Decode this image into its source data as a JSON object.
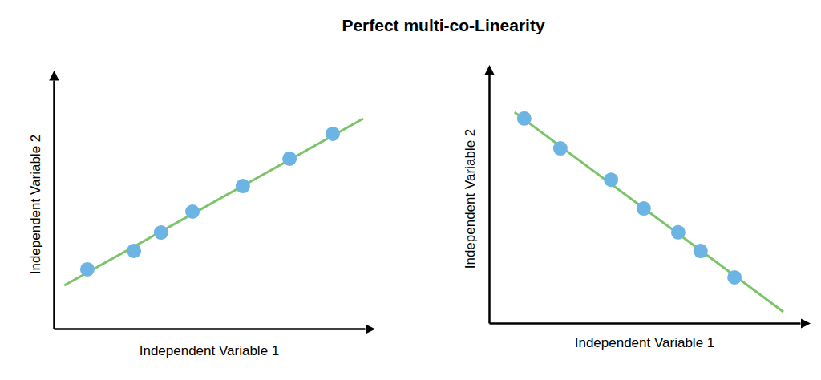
{
  "title": "Perfect multi-co-Linearity",
  "chart_data": [
    {
      "type": "scatter",
      "xlabel": "Independent Variable 1",
      "ylabel": "Independent Variable 2",
      "xlim": [
        0,
        10
      ],
      "ylim": [
        0,
        10
      ],
      "tick_labels": false,
      "grid": false,
      "series": [
        {
          "type": "scatter",
          "color": "#6cb4e4",
          "marker": "circle",
          "x": [
            1.08,
            2.58,
            3.45,
            4.46,
            6.08,
            7.58,
            8.97
          ],
          "values": [
            2.39,
            3.13,
            3.87,
            4.71,
            5.74,
            6.84,
            7.84
          ]
        },
        {
          "type": "line",
          "color": "#7cc46a",
          "line_style": "solid",
          "x": [
            0.34,
            9.95
          ],
          "values": [
            1.74,
            8.45
          ]
        }
      ]
    },
    {
      "type": "scatter",
      "xlabel": "Independent Variable 1",
      "ylabel": "Independent Variable 2",
      "xlim": [
        0,
        10
      ],
      "ylim": [
        0,
        10
      ],
      "tick_labels": false,
      "grid": false,
      "series": [
        {
          "type": "scatter",
          "color": "#6cb4e4",
          "marker": "circle",
          "x": [
            1.13,
            2.29,
            3.92,
            4.97,
            6.08,
            6.8,
            7.89
          ],
          "values": [
            8.23,
            7.03,
            5.77,
            4.61,
            3.65,
            2.9,
            1.84
          ]
        },
        {
          "type": "line",
          "color": "#7cc46a",
          "line_style": "solid",
          "x": [
            0.82,
            9.46
          ],
          "values": [
            8.48,
            0.45
          ]
        }
      ]
    }
  ]
}
